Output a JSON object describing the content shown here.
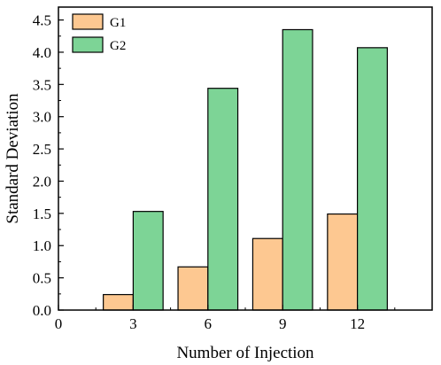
{
  "chart_data": {
    "type": "bar",
    "title": "",
    "xlabel": "Number of Injection",
    "ylabel": "Standard Deviation",
    "x_ticks": [
      "0",
      "3",
      "6",
      "9",
      "12"
    ],
    "xlim": [
      0,
      15
    ],
    "ylim": [
      0,
      4.7
    ],
    "y_ticks": [
      "0.0",
      "0.5",
      "1.0",
      "1.5",
      "2.0",
      "2.5",
      "3.0",
      "3.5",
      "4.0",
      "4.5"
    ],
    "categories": [
      3,
      6,
      9,
      12
    ],
    "series": [
      {
        "name": "G1",
        "color": "#fdc891",
        "values": [
          0.24,
          0.67,
          1.11,
          1.49
        ]
      },
      {
        "name": "G2",
        "color": "#7dd496",
        "values": [
          1.53,
          3.44,
          4.35,
          4.07
        ]
      }
    ],
    "legend": "top-left",
    "grid": false
  }
}
